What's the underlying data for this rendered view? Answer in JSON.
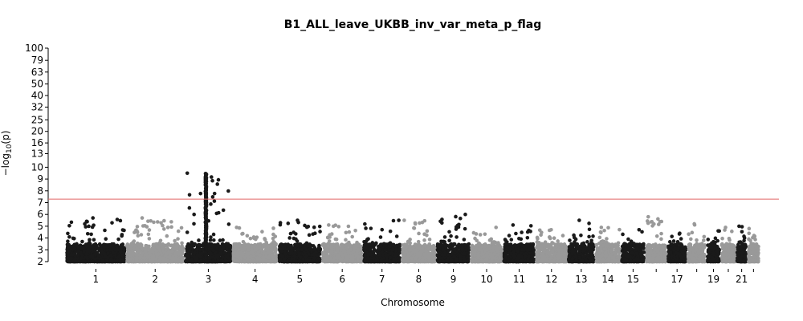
{
  "chart_data": {
    "type": "scatter",
    "subtype": "manhattan",
    "title": "B1_ALL_leave_UKBB_inv_var_meta_p_flag",
    "xlabel": "Chromosome",
    "ylabel_main": "−log",
    "ylabel_sub": "10",
    "ylabel_tail": "(p)",
    "y_scale": "log-like (compressed above 10)",
    "y_ticks": [
      {
        "value": 2,
        "label": "2"
      },
      {
        "value": 3,
        "label": "3"
      },
      {
        "value": 4,
        "label": "4"
      },
      {
        "value": 5,
        "label": "5"
      },
      {
        "value": 6,
        "label": "6"
      },
      {
        "value": 7,
        "label": "7"
      },
      {
        "value": 8,
        "label": "8"
      },
      {
        "value": 9,
        "label": "9"
      },
      {
        "value": 10,
        "label": "10"
      },
      {
        "value": 13,
        "label": "13"
      },
      {
        "value": 16,
        "label": "16"
      },
      {
        "value": 20,
        "label": "20"
      },
      {
        "value": 25,
        "label": "25"
      },
      {
        "value": 32,
        "label": "32"
      },
      {
        "value": 40,
        "label": "40"
      },
      {
        "value": 50,
        "label": "50"
      },
      {
        "value": 63,
        "label": "63"
      },
      {
        "value": 79,
        "label": "79"
      },
      {
        "value": 100,
        "label": "100"
      }
    ],
    "significance_line": {
      "value": 7.3,
      "color": "#e06666"
    },
    "colors": {
      "odd": "#1a1a1a",
      "even": "#999999"
    },
    "grid": false,
    "legend": "none",
    "chromosomes": [
      {
        "chr": "1",
        "label": "1",
        "max": 5.7
      },
      {
        "chr": "2",
        "label": "2",
        "max": 5.7
      },
      {
        "chr": "3",
        "label": "3",
        "max": 9.5,
        "peak": true
      },
      {
        "chr": "4",
        "label": "4",
        "max": 4.9
      },
      {
        "chr": "5",
        "label": "5",
        "max": 5.5
      },
      {
        "chr": "6",
        "label": "6",
        "max": 5.1
      },
      {
        "chr": "7",
        "label": "7",
        "max": 5.5
      },
      {
        "chr": "8",
        "label": "8",
        "max": 5.5
      },
      {
        "chr": "9",
        "label": "9",
        "max": 6.0
      },
      {
        "chr": "10",
        "label": "10",
        "max": 4.9
      },
      {
        "chr": "11",
        "label": "11",
        "max": 5.1
      },
      {
        "chr": "12",
        "label": "12",
        "max": 4.7
      },
      {
        "chr": "13",
        "label": "13",
        "max": 5.5
      },
      {
        "chr": "14",
        "label": "14",
        "max": 4.9
      },
      {
        "chr": "15",
        "label": "15",
        "max": 4.7
      },
      {
        "chr": "16",
        "label": "",
        "max": 5.8
      },
      {
        "chr": "17",
        "label": "17",
        "max": 4.4
      },
      {
        "chr": "18",
        "label": "",
        "max": 5.2
      },
      {
        "chr": "19",
        "label": "19",
        "max": 4.6
      },
      {
        "chr": "20",
        "label": "",
        "max": 4.9
      },
      {
        "chr": "21",
        "label": "21",
        "max": 5.0
      },
      {
        "chr": "22",
        "label": "",
        "max": 4.8
      }
    ]
  }
}
